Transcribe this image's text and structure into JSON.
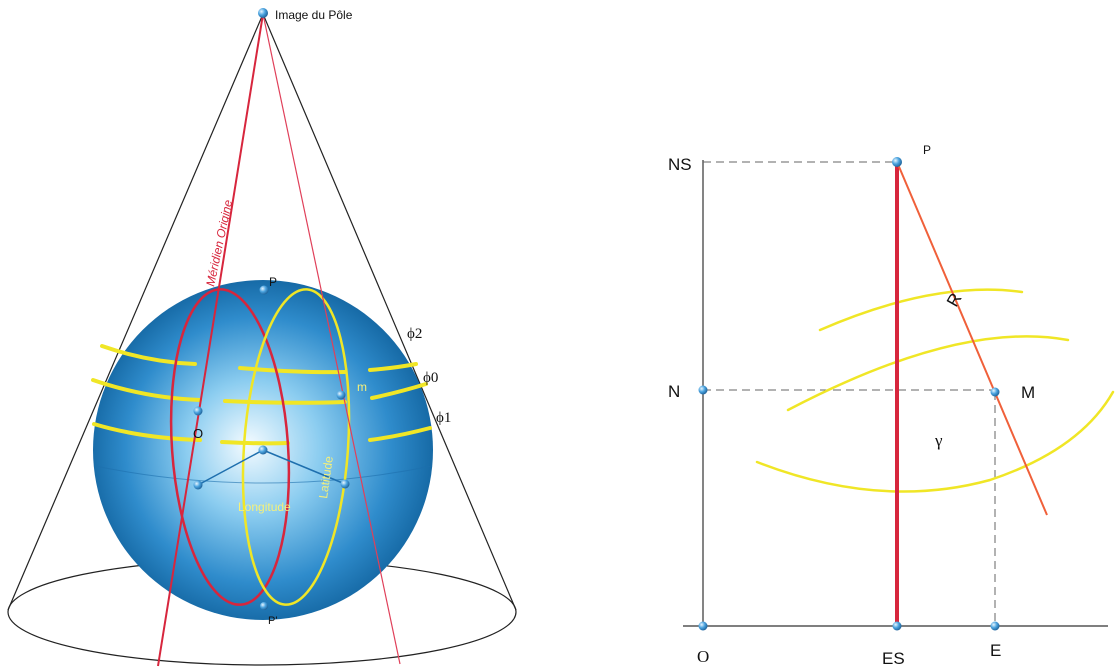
{
  "cone_figure": {
    "apex_label": "Image du Pôle",
    "meridian_label": "Méridien Origine",
    "north_pole_label": "P",
    "south_pole_label": "P'",
    "origin_label": "O",
    "point_label": "m",
    "parallel_labels": [
      "ϕ2",
      "ϕ0",
      "ϕ1"
    ],
    "latitude_label": "Latitude",
    "longitude_label": "Longitude"
  },
  "plane_figure": {
    "axis_labels": {
      "ns": "NS",
      "n": "N",
      "o": "O",
      "es": "ES",
      "e": "E"
    },
    "pole_label": "P",
    "radius_label": "R",
    "point_label": "M",
    "angle_label": "γ"
  },
  "colors": {
    "sphere_light": "#f4fbff",
    "sphere_mid": "#3a9fd6",
    "sphere_dark": "#0b5a94",
    "parallel_yellow": "#f0e626",
    "meridian_red": "#d7263d",
    "radius_orange": "#f0603a",
    "node_blue": "#4aa3df",
    "text_yellow": "#f5f07a"
  }
}
